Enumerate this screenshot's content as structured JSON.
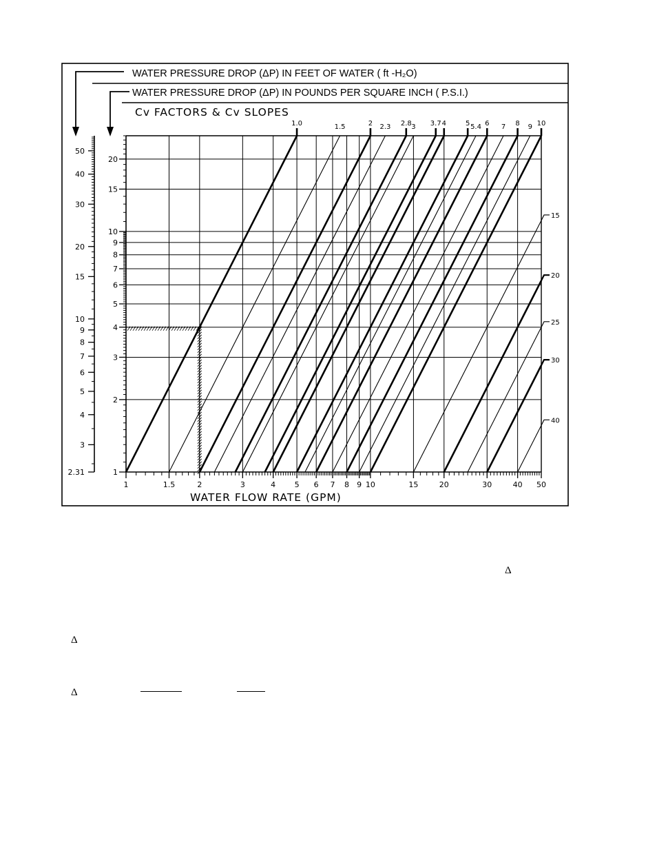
{
  "headers": {
    "ft_h2o": "WATER PRESSURE DROP  (ΔP)  IN FEET OF WATER  ( ft -H₂O)",
    "psi": "WATER  PRESSURE DROP  (ΔP)  IN POUNDS PER SQUARE INCH  ( P.S.I.)"
  },
  "chart_data": {
    "type": "line",
    "title": "Cv FACTORS & Cv SLOPES",
    "xlabel": "WATER FLOW RATE (GPM)",
    "ylabel_left": "WATER PRESSURE DROP (ΔP) IN FEET OF WATER (ft-H2O)",
    "ylabel_inner": "WATER PRESSURE DROP (ΔP) IN POUNDS PER SQUARE INCH (P.S.I.)",
    "x_scale": "log",
    "y_scale": "log",
    "xlim": [
      1,
      50
    ],
    "ylim_psi": [
      1,
      25
    ],
    "ylim_ft": [
      2.31,
      57.75
    ],
    "x_ticks": [
      "1",
      "1.5",
      "2",
      "3",
      "4",
      "5",
      "6",
      "7",
      "8",
      "9",
      "10",
      "15",
      "20",
      "30",
      "40",
      "50"
    ],
    "y_ticks_psi": [
      "1",
      "2",
      "3",
      "4",
      "5",
      "6",
      "7",
      "8",
      "9",
      "10",
      "15",
      "20"
    ],
    "y_ticks_ft": [
      "2.31",
      "3",
      "4",
      "5",
      "6",
      "7",
      "8",
      "9",
      "10",
      "15",
      "20",
      "30",
      "40",
      "50"
    ],
    "cv_top_labels": [
      "1.0",
      "1.5",
      "2",
      "2.3",
      "2.8",
      "3",
      "3.7",
      "4",
      "5",
      "5.4",
      "6",
      "7",
      "8",
      "9",
      "10"
    ],
    "cv_right_labels": [
      "15",
      "20",
      "25",
      "30",
      "40"
    ],
    "cv_lines": [
      {
        "cv": "1.0",
        "bold": true
      },
      {
        "cv": "1.5",
        "bold": false
      },
      {
        "cv": "2",
        "bold": true
      },
      {
        "cv": "2.3",
        "bold": false
      },
      {
        "cv": "2.8",
        "bold": true
      },
      {
        "cv": "3",
        "bold": false
      },
      {
        "cv": "3.7",
        "bold": true
      },
      {
        "cv": "4",
        "bold": true
      },
      {
        "cv": "5",
        "bold": true
      },
      {
        "cv": "5.4",
        "bold": false
      },
      {
        "cv": "6",
        "bold": true
      },
      {
        "cv": "7",
        "bold": false
      },
      {
        "cv": "8",
        "bold": true
      },
      {
        "cv": "9",
        "bold": false
      },
      {
        "cv": "10",
        "bold": true
      },
      {
        "cv": "15",
        "bold": false
      },
      {
        "cv": "20",
        "bold": true
      },
      {
        "cv": "25",
        "bold": false
      },
      {
        "cv": "30",
        "bold": true
      },
      {
        "cv": "40",
        "bold": false
      }
    ],
    "example": {
      "flow_gpm": 2,
      "pressure_drop_psi": 4,
      "cv": 1.0
    },
    "grid": true
  },
  "text_fragments": {
    "delta_1": "Δ",
    "delta_2": "Δ",
    "delta_3": "Δ"
  }
}
